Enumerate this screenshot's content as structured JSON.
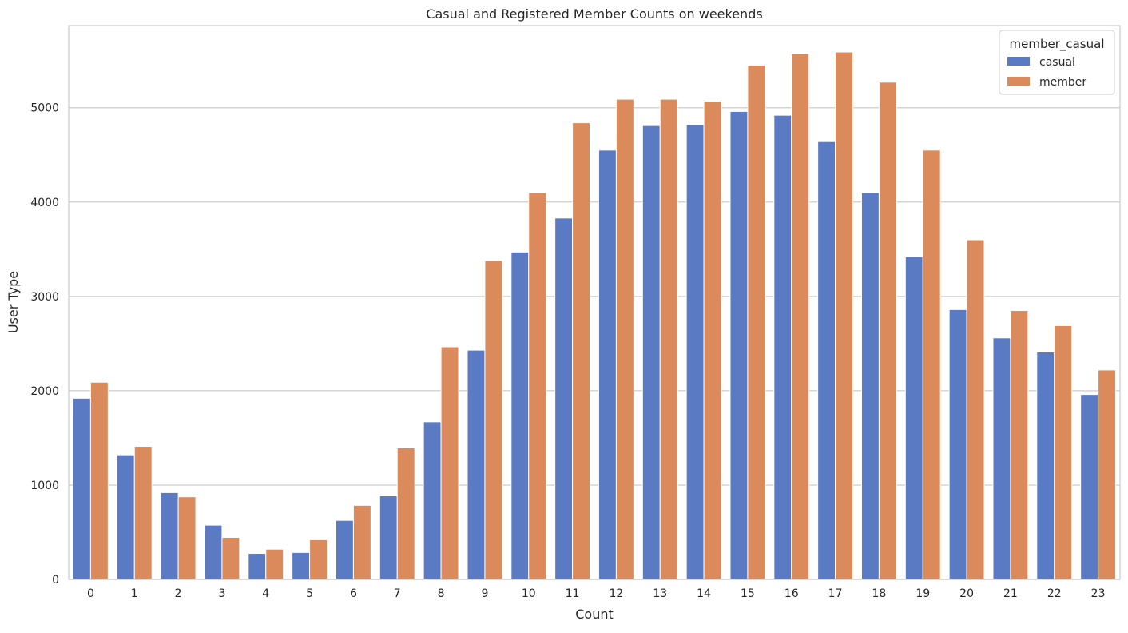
{
  "chart_data": {
    "type": "bar",
    "title": "Casual and Registered Member Counts on weekends",
    "xlabel": "Count",
    "ylabel": "User Type",
    "categories": [
      "0",
      "1",
      "2",
      "3",
      "4",
      "5",
      "6",
      "7",
      "8",
      "9",
      "10",
      "11",
      "12",
      "13",
      "14",
      "15",
      "16",
      "17",
      "18",
      "19",
      "20",
      "21",
      "22",
      "23"
    ],
    "series": [
      {
        "name": "casual",
        "color": "#5A7BC3",
        "values": [
          1920,
          1320,
          920,
          575,
          275,
          285,
          625,
          885,
          1670,
          2430,
          3470,
          3830,
          4550,
          4810,
          4820,
          4960,
          4920,
          4640,
          4100,
          3420,
          2860,
          2560,
          2410,
          1960
        ]
      },
      {
        "name": "member",
        "color": "#DB8A5B",
        "values": [
          2090,
          1410,
          875,
          445,
          320,
          420,
          785,
          1395,
          2465,
          3380,
          4100,
          4840,
          5090,
          5090,
          5070,
          5450,
          5570,
          5590,
          5270,
          4550,
          3600,
          2850,
          2690,
          2220
        ]
      }
    ],
    "ylim": [
      0,
      5870
    ],
    "yticks": [
      "0",
      "1000",
      "2000",
      "3000",
      "4000",
      "5000"
    ],
    "grid": "horizontal",
    "legend": {
      "title": "member_casual",
      "placement": "top-right"
    }
  }
}
